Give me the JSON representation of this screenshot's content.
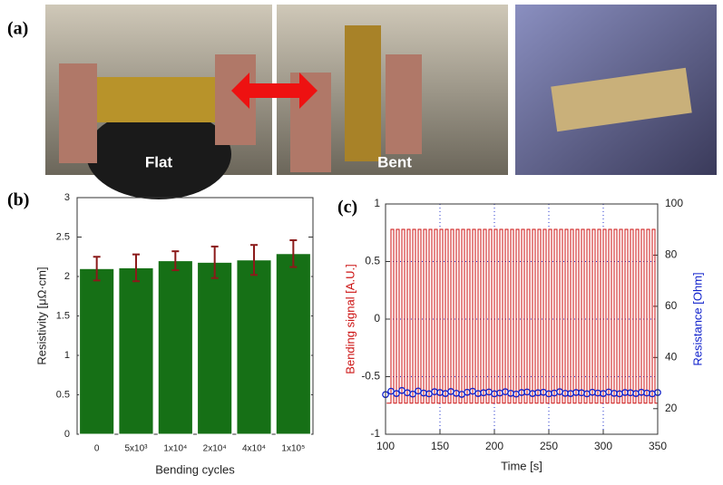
{
  "panel_a": {
    "label": "(a)",
    "photo_labels": [
      "Flat",
      "Bent"
    ]
  },
  "chart_data": [
    {
      "type": "bar",
      "panel_label": "(b)",
      "x_label": "Bending cycles",
      "y_label": "Resistivity [μΩ·cm]",
      "categories": [
        "0",
        "5x10³",
        "1x10⁴",
        "2x10⁴",
        "4x10⁴",
        "1x10⁵"
      ],
      "values": [
        2.1,
        2.11,
        2.2,
        2.18,
        2.21,
        2.29
      ],
      "errors": [
        0.15,
        0.17,
        0.12,
        0.2,
        0.19,
        0.17
      ],
      "color": "#167016",
      "error_color": "#8b1a1a",
      "ylim": [
        0,
        3
      ],
      "yticks": [
        0,
        0.5,
        1,
        1.5,
        2,
        2.5,
        3
      ]
    },
    {
      "type": "line",
      "panel_label": "(c)",
      "x_label": "Time [s]",
      "y_label": "Bending signal [A.U.]",
      "y2_label": "Resistance [Ohm]",
      "xlim": [
        100,
        350
      ],
      "xticks": [
        100,
        150,
        200,
        250,
        300,
        350
      ],
      "ylim": [
        -1,
        1
      ],
      "yticks": [
        -1,
        -0.5,
        0,
        0.5,
        1
      ],
      "y2lim": [
        10,
        100
      ],
      "y2ticks": [
        20,
        40,
        60,
        80,
        100
      ],
      "grid": true,
      "grid_color": "#2233cc",
      "series": [
        {
          "name": "Bending signal",
          "color": "#cc1111",
          "marker": "none",
          "x": [
            101,
            105,
            105,
            107.5,
            107.5,
            110,
            110,
            112.5,
            112.5,
            115,
            115,
            117.5,
            117.5,
            120,
            120,
            122.5,
            122.5,
            125,
            125,
            127.5,
            127.5,
            130,
            130,
            132.5,
            132.5,
            135,
            135,
            137.5,
            137.5,
            140,
            140,
            142.5,
            142.5,
            145,
            145,
            147.5,
            147.5,
            150,
            150,
            152.5,
            152.5,
            155,
            155,
            157.5,
            157.5,
            160,
            160,
            162.5,
            162.5,
            165,
            165,
            167.5,
            167.5,
            170,
            170,
            172.5,
            172.5,
            175,
            175,
            177.5,
            177.5,
            180,
            180,
            182.5,
            182.5,
            185,
            185,
            187.5,
            187.5,
            190,
            190,
            192.5,
            192.5,
            195,
            195,
            197.5,
            197.5,
            200,
            200,
            202.5,
            202.5,
            205,
            205,
            207.5,
            207.5,
            210,
            210,
            212.5,
            212.5,
            215,
            215,
            217.5,
            217.5,
            220,
            220,
            222.5,
            222.5,
            225,
            225,
            227.5,
            227.5,
            230,
            230,
            232.5,
            232.5,
            235,
            235,
            237.5,
            237.5,
            240,
            240,
            242.5,
            242.5,
            245,
            245,
            247.5,
            247.5,
            250,
            250,
            252.5,
            252.5,
            255,
            255,
            257.5,
            257.5,
            260,
            260,
            262.5,
            262.5,
            265,
            265,
            267.5,
            267.5,
            270,
            270,
            272.5,
            272.5,
            275,
            275,
            277.5,
            277.5,
            280,
            280,
            282.5,
            282.5,
            285,
            285,
            287.5,
            287.5,
            290,
            290,
            292.5,
            292.5,
            295,
            295,
            297.5,
            297.5,
            300,
            300,
            302.5,
            302.5,
            305,
            305,
            307.5,
            307.5,
            310,
            310,
            312.5,
            312.5,
            315,
            315,
            317.5,
            317.5,
            320,
            320,
            322.5,
            322.5,
            325,
            325,
            327.5,
            327.5,
            330,
            330,
            332.5,
            332.5,
            335,
            335,
            337.5,
            337.5,
            340,
            340,
            342.5,
            342.5,
            345,
            345,
            347.5,
            347.5,
            350
          ],
          "values": [
            -0.73,
            -0.73,
            0.78,
            0.78,
            -0.73,
            -0.73,
            0.78,
            0.78,
            -0.73,
            -0.73,
            0.78,
            0.78,
            -0.73,
            -0.73,
            0.78,
            0.78,
            -0.73,
            -0.73,
            0.78,
            0.78,
            -0.73,
            -0.73,
            0.78,
            0.78,
            -0.73,
            -0.73,
            0.78,
            0.78,
            -0.73,
            -0.73,
            0.78,
            0.78,
            -0.73,
            -0.73,
            0.78,
            0.78,
            -0.73,
            -0.73,
            0.78,
            0.78,
            -0.73,
            -0.73,
            0.78,
            0.78,
            -0.73,
            -0.73,
            0.78,
            0.78,
            -0.73,
            -0.73,
            0.78,
            0.78,
            -0.73,
            -0.73,
            0.78,
            0.78,
            -0.73,
            -0.73,
            0.78,
            0.78,
            -0.73,
            -0.73,
            0.78,
            0.78,
            -0.73,
            -0.73,
            0.78,
            0.78,
            -0.73,
            -0.73,
            0.78,
            0.78,
            -0.73,
            -0.73,
            0.78,
            0.78,
            -0.73,
            -0.73,
            0.78,
            0.78,
            -0.73,
            -0.73,
            0.78,
            0.78,
            -0.73,
            -0.73,
            0.78,
            0.78,
            -0.73,
            -0.73,
            0.78,
            0.78,
            -0.73,
            -0.73,
            0.78,
            0.78,
            -0.73,
            -0.73,
            0.78,
            0.78,
            -0.73,
            -0.73,
            0.78,
            0.78,
            -0.73,
            -0.73,
            0.78,
            0.78,
            -0.73,
            -0.73,
            0.78,
            0.78,
            -0.73,
            -0.73,
            0.78,
            0.78,
            -0.73,
            -0.73,
            0.78,
            0.78,
            -0.73,
            -0.73,
            0.78,
            0.78,
            -0.73,
            -0.73,
            0.78,
            0.78,
            -0.73,
            -0.73,
            0.78,
            0.78,
            -0.73,
            -0.73,
            0.78,
            0.78,
            -0.73,
            -0.73,
            0.78,
            0.78,
            -0.73,
            -0.73,
            0.78,
            0.78,
            -0.73,
            -0.73,
            0.78,
            0.78,
            -0.73,
            -0.73,
            0.78,
            0.78,
            -0.73,
            -0.73,
            0.78,
            0.78,
            -0.73,
            -0.73,
            0.78,
            0.78,
            -0.73,
            -0.73,
            0.78,
            0.78,
            -0.73,
            -0.73,
            0.78,
            0.78,
            -0.73,
            -0.73,
            0.78,
            0.78,
            -0.73,
            -0.73,
            0.78,
            0.78,
            -0.73,
            -0.73,
            0.78,
            0.78,
            -0.73,
            -0.73,
            0.78,
            0.78,
            -0.73,
            -0.73,
            0.78,
            0.78,
            -0.73,
            -0.73,
            0.78,
            0.78,
            -0.73,
            -0.73,
            0.78,
            0.78,
            -0.73,
            -0.73
          ]
        },
        {
          "name": "Resistance",
          "color": "#1122cc",
          "marker": "circle",
          "axis": "y2",
          "x": [
            100,
            105,
            110,
            115,
            120,
            125,
            130,
            135,
            140,
            145,
            150,
            155,
            160,
            165,
            170,
            175,
            180,
            185,
            190,
            195,
            200,
            205,
            210,
            215,
            220,
            225,
            230,
            235,
            240,
            245,
            250,
            255,
            260,
            265,
            270,
            275,
            280,
            285,
            290,
            295,
            300,
            305,
            310,
            315,
            320,
            325,
            330,
            335,
            340,
            345,
            350
          ],
          "values": [
            25.5,
            26.8,
            25.9,
            27.1,
            26.2,
            25.7,
            26.9,
            26.1,
            25.8,
            26.6,
            26.3,
            25.9,
            26.7,
            26.0,
            25.6,
            26.4,
            26.8,
            25.9,
            26.2,
            26.5,
            25.8,
            26.1,
            26.6,
            26.0,
            25.7,
            26.3,
            26.5,
            25.9,
            26.2,
            26.4,
            25.8,
            26.1,
            26.6,
            26.0,
            25.9,
            26.3,
            26.2,
            25.8,
            26.4,
            26.1,
            25.9,
            26.5,
            26.0,
            25.8,
            26.3,
            26.2,
            25.9,
            26.4,
            26.1,
            25.8,
            26.3
          ]
        }
      ]
    }
  ]
}
